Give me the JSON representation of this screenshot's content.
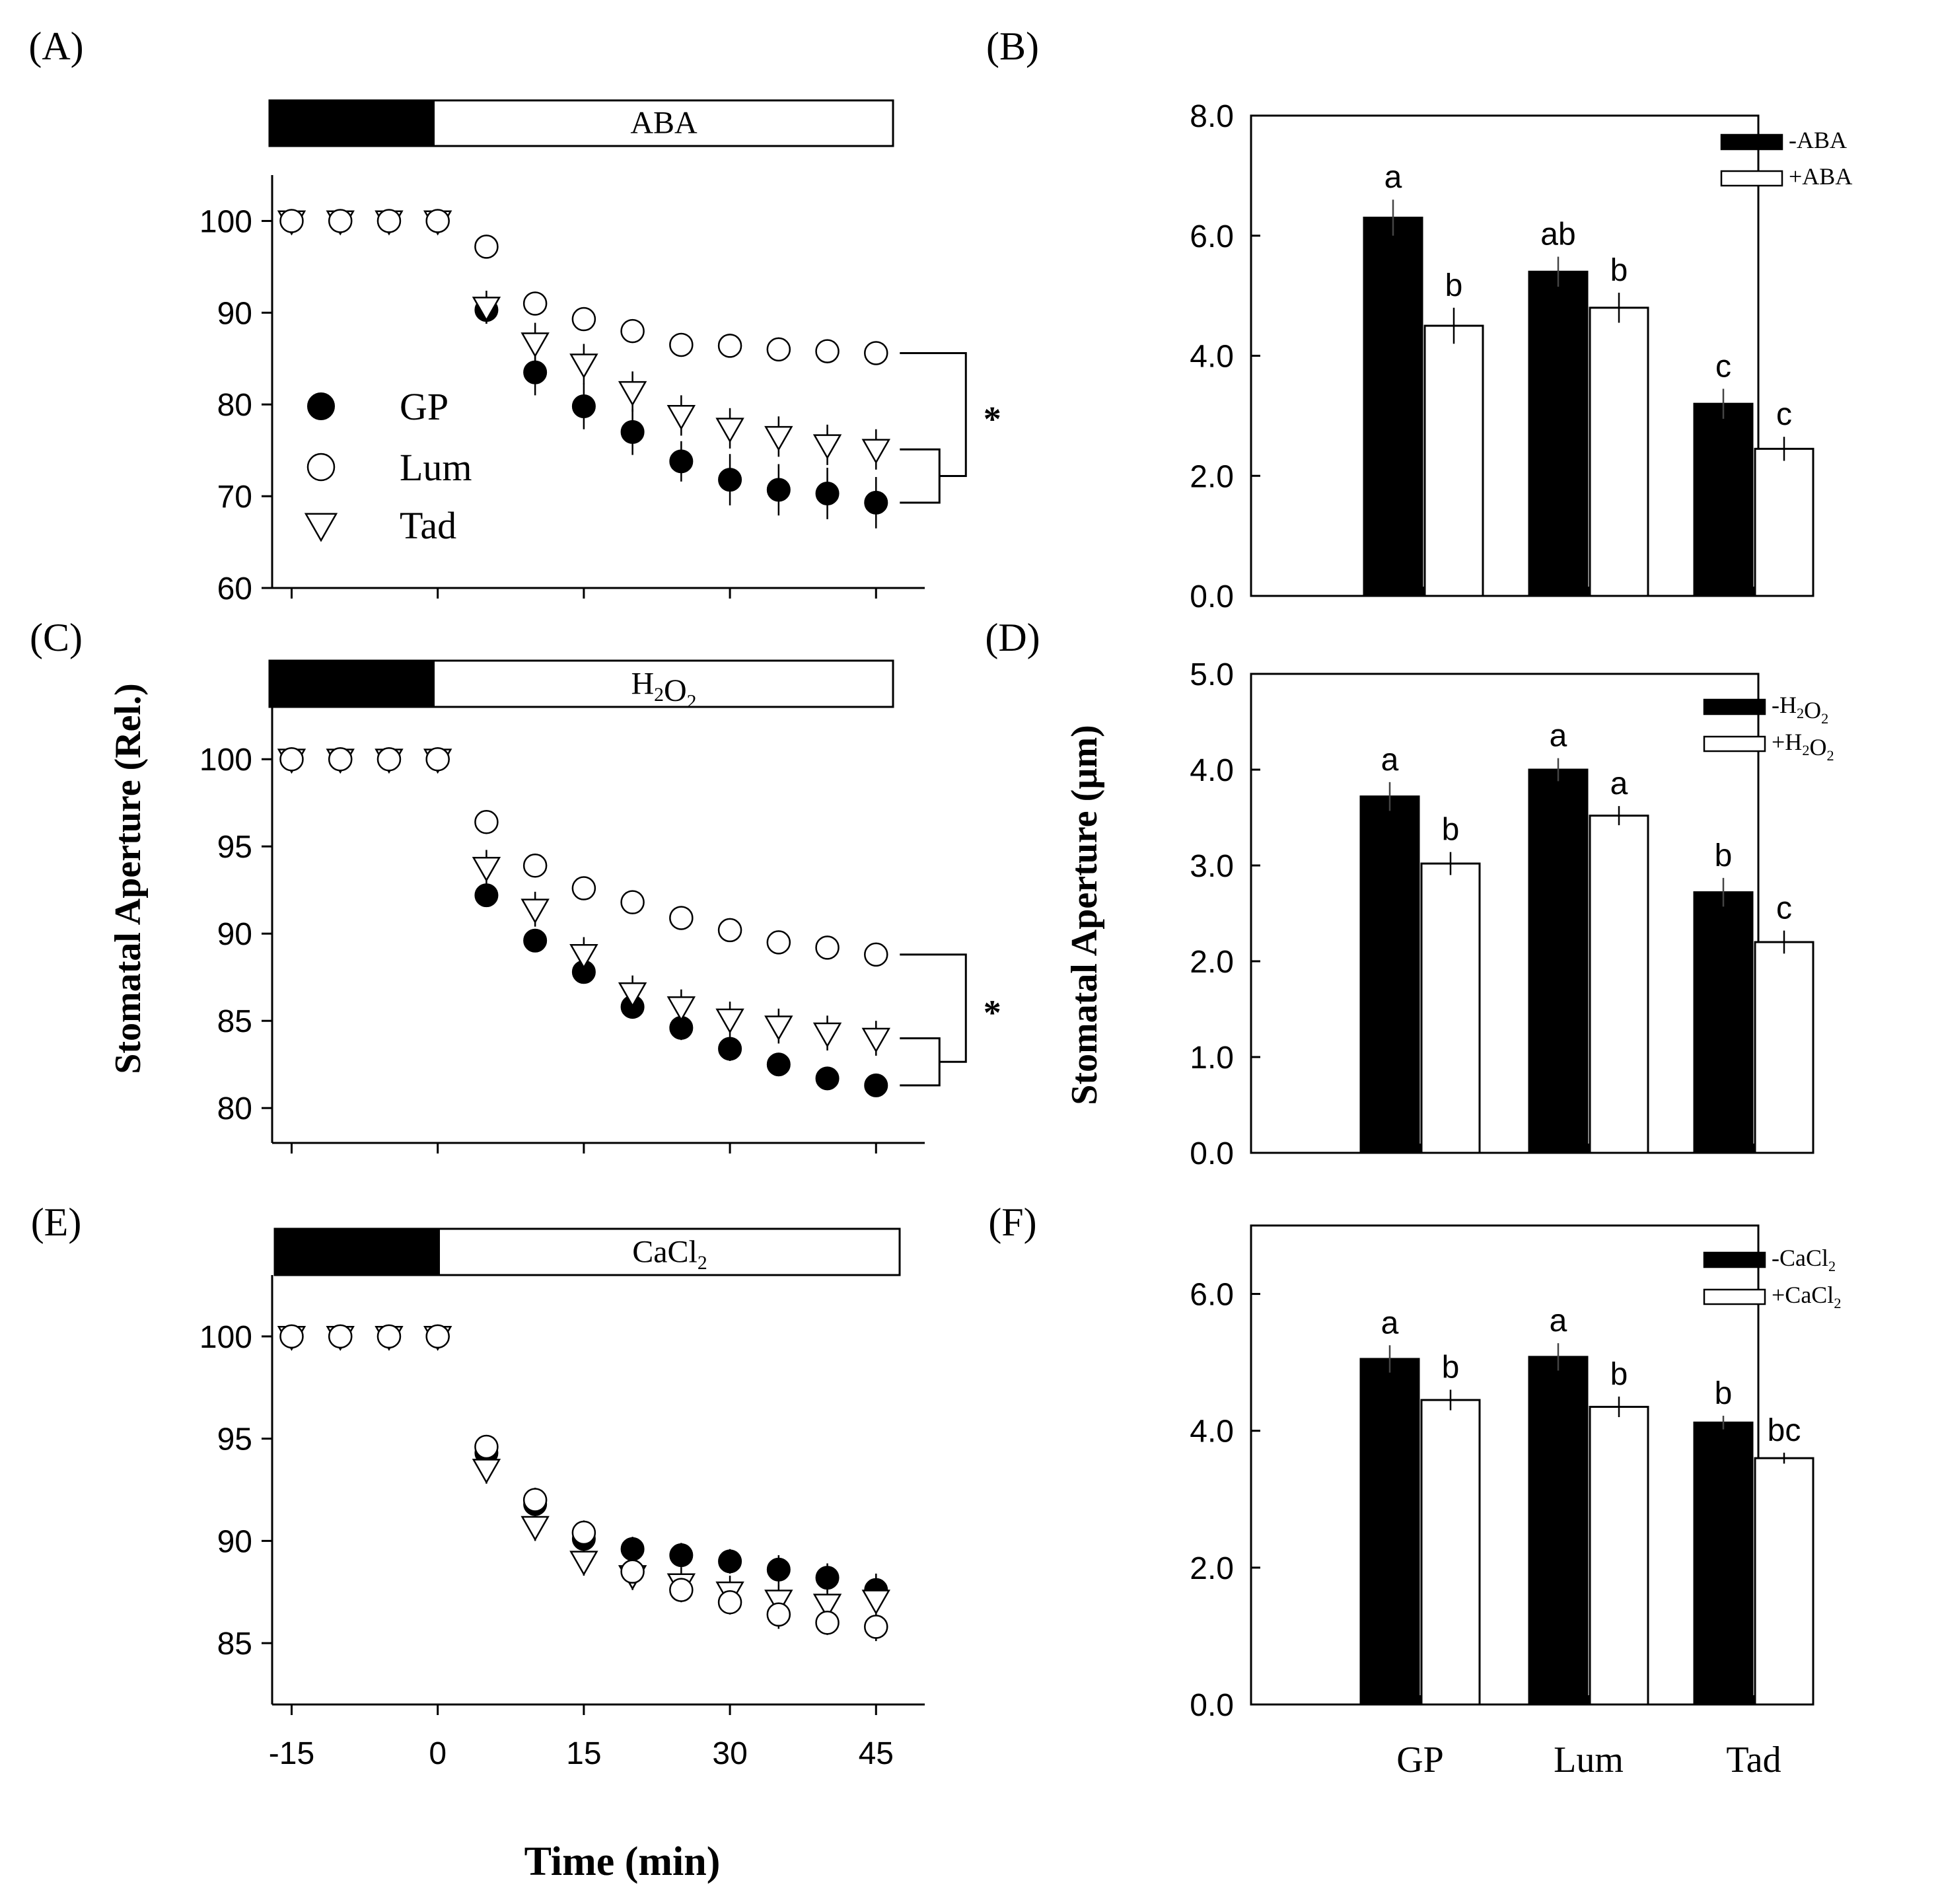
{
  "figure": {
    "x_axis_title": "Time (min)",
    "left_y_title": "Stomatal Aperture (Rel.)",
    "right_y_title": "Stomatal Aperture (µm)",
    "significance_mark": "*"
  },
  "chart_data": [
    {
      "panel": "(A)",
      "type": "scatter",
      "treatment_label": "ABA",
      "xlabel": "Time (min)",
      "ylabel": "Stomatal Aperture (Rel.)",
      "xlim": [
        -17,
        50
      ],
      "ylim": [
        60,
        105
      ],
      "x_ticks": [
        -15,
        0,
        15,
        30,
        45
      ],
      "y_ticks": [
        60,
        70,
        80,
        90,
        100
      ],
      "x": [
        -15,
        -10,
        -5,
        0,
        5,
        10,
        15,
        20,
        25,
        30,
        35,
        40,
        45
      ],
      "series": [
        {
          "name": "GP",
          "marker": "filled-circle",
          "values": [
            100,
            100,
            100,
            100,
            90.3,
            83.5,
            79.8,
            77.0,
            73.8,
            71.8,
            70.7,
            70.3,
            69.3
          ],
          "errors": [
            0,
            0,
            0,
            0,
            1.5,
            2.5,
            2.5,
            2.5,
            2.2,
            2.8,
            2.8,
            2.8,
            2.8
          ]
        },
        {
          "name": "Lum",
          "marker": "open-circle",
          "values": [
            100,
            100,
            100,
            100,
            97.2,
            91.0,
            89.3,
            88.0,
            86.5,
            86.4,
            86.0,
            85.8,
            85.6
          ],
          "errors": [
            0,
            0,
            0,
            0,
            0.8,
            1.2,
            1.2,
            1.2,
            1.2,
            1.3,
            1.3,
            1.3,
            1.2
          ]
        },
        {
          "name": "Tad",
          "marker": "open-triangle",
          "values": [
            100,
            100,
            100,
            100,
            90.6,
            86.7,
            84.4,
            81.4,
            78.8,
            77.4,
            76.5,
            75.6,
            75.1
          ],
          "errors": [
            0,
            0,
            0,
            0,
            1.8,
            2.2,
            2.2,
            2.2,
            2.2,
            2.2,
            2.2,
            2.2,
            2.2
          ]
        }
      ],
      "legend": [
        "GP",
        "Lum",
        "Tad"
      ]
    },
    {
      "panel": "(B)",
      "type": "bar",
      "categories": [
        "GP",
        "Lum",
        "Tad"
      ],
      "ylim": [
        0,
        8
      ],
      "y_ticks": [
        "0.0",
        "2.0",
        "4.0",
        "6.0",
        "8.0"
      ],
      "series": [
        {
          "name": "-ABA",
          "color": "#000000",
          "values": [
            6.3,
            5.4,
            3.2
          ],
          "errors": [
            0.3,
            0.25,
            0.25
          ],
          "letters": [
            "a",
            "ab",
            "c"
          ]
        },
        {
          "name": "+ABA",
          "color": "#ffffff",
          "values": [
            4.5,
            4.8,
            2.45
          ],
          "errors": [
            0.3,
            0.25,
            0.2
          ],
          "letters": [
            "b",
            "b",
            "c"
          ]
        }
      ]
    },
    {
      "panel": "(C)",
      "type": "scatter",
      "treatment_label": "H2O2",
      "xlim": [
        -17,
        50
      ],
      "ylim": [
        78,
        103
      ],
      "x_ticks": [
        -15,
        0,
        15,
        30,
        45
      ],
      "y_ticks": [
        80,
        85,
        90,
        95,
        100
      ],
      "x": [
        -15,
        -10,
        -5,
        0,
        5,
        10,
        15,
        20,
        25,
        30,
        35,
        40,
        45
      ],
      "series": [
        {
          "name": "GP",
          "marker": "filled-circle",
          "values": [
            100,
            100,
            100,
            100,
            92.2,
            89.6,
            87.8,
            85.8,
            84.6,
            83.4,
            82.5,
            81.7,
            81.3
          ],
          "errors": [
            0,
            0,
            0,
            0,
            0.6,
            0.6,
            0.6,
            0.6,
            0.7,
            0.7,
            0.6,
            0.5,
            0.5
          ]
        },
        {
          "name": "Lum",
          "marker": "open-circle",
          "values": [
            100,
            100,
            100,
            100,
            96.4,
            93.9,
            92.6,
            91.8,
            90.9,
            90.2,
            89.5,
            89.2,
            88.8
          ],
          "errors": [
            0,
            0,
            0,
            0,
            0.5,
            0.5,
            0.5,
            0.5,
            0.5,
            0.5,
            0.5,
            0.5,
            0.5
          ]
        },
        {
          "name": "Tad",
          "marker": "open-triangle",
          "values": [
            100,
            100,
            100,
            100,
            93.8,
            91.4,
            88.8,
            86.6,
            85.8,
            85.1,
            84.7,
            84.3,
            84.0
          ],
          "errors": [
            0,
            0,
            0,
            0,
            1.0,
            1.0,
            1.0,
            1.0,
            1.0,
            1.0,
            1.0,
            1.0,
            1.0
          ]
        }
      ]
    },
    {
      "panel": "(D)",
      "type": "bar",
      "categories": [
        "GP",
        "Lum",
        "Tad"
      ],
      "ylim": [
        0,
        5
      ],
      "y_ticks": [
        "0.0",
        "1.0",
        "2.0",
        "3.0",
        "4.0",
        "5.0"
      ],
      "series": [
        {
          "name": "-H2O2",
          "color": "#000000",
          "values": [
            3.72,
            4.0,
            2.72
          ],
          "errors": [
            0.15,
            0.12,
            0.15
          ],
          "letters": [
            "a",
            "a",
            "b"
          ]
        },
        {
          "name": "+H2O2",
          "color": "#ffffff",
          "values": [
            3.02,
            3.52,
            2.2
          ],
          "errors": [
            0.12,
            0.1,
            0.12
          ],
          "letters": [
            "b",
            "a",
            "c"
          ]
        }
      ]
    },
    {
      "panel": "(E)",
      "type": "scatter",
      "treatment_label": "CaCl2",
      "xlabel": "Time (min)",
      "xlim": [
        -17,
        50
      ],
      "ylim": [
        82,
        103
      ],
      "x_ticks": [
        -15,
        0,
        15,
        30,
        45
      ],
      "x_tick_labels": [
        "-15",
        "0",
        "15",
        "30",
        "45"
      ],
      "y_ticks": [
        85,
        90,
        95,
        100
      ],
      "x": [
        -15,
        -10,
        -5,
        0,
        5,
        10,
        15,
        20,
        25,
        30,
        35,
        40,
        45
      ],
      "series": [
        {
          "name": "GP",
          "marker": "filled-circle",
          "values": [
            100,
            100,
            100,
            100,
            94.3,
            91.8,
            90.1,
            89.6,
            89.3,
            89.0,
            88.6,
            88.2,
            87.6
          ],
          "errors": [
            0,
            0,
            0,
            0,
            0.5,
            0.6,
            0.6,
            0.6,
            0.6,
            0.6,
            0.7,
            0.7,
            0.8
          ]
        },
        {
          "name": "Lum",
          "marker": "open-circle",
          "values": [
            100,
            100,
            100,
            100,
            94.6,
            92.0,
            90.4,
            88.5,
            87.6,
            87.0,
            86.4,
            86.0,
            85.8
          ],
          "errors": [
            0,
            0,
            0,
            0,
            0.5,
            0.6,
            0.6,
            0.6,
            0.6,
            0.6,
            0.7,
            0.6,
            0.7
          ]
        },
        {
          "name": "Tad",
          "marker": "open-triangle",
          "values": [
            100,
            100,
            100,
            100,
            93.5,
            90.7,
            89.0,
            88.3,
            87.9,
            87.5,
            87.1,
            86.9,
            87.1
          ],
          "errors": [
            0,
            0,
            0,
            0,
            0.7,
            0.7,
            0.7,
            0.7,
            0.8,
            0.8,
            0.8,
            0.8,
            0.8
          ]
        }
      ]
    },
    {
      "panel": "(F)",
      "type": "bar",
      "categories": [
        "GP",
        "Lum",
        "Tad"
      ],
      "ylim": [
        0,
        7
      ],
      "y_ticks": [
        "0.0",
        "2.0",
        "4.0",
        "6.0"
      ],
      "series": [
        {
          "name": "-CaCl2",
          "color": "#000000",
          "values": [
            5.05,
            5.08,
            4.12
          ],
          "errors": [
            0.2,
            0.2,
            0.1
          ],
          "letters": [
            "a",
            "a",
            "b"
          ]
        },
        {
          "name": "+CaCl2",
          "color": "#ffffff",
          "values": [
            4.45,
            4.35,
            3.6
          ],
          "errors": [
            0.15,
            0.15,
            0.08
          ],
          "letters": [
            "b",
            "b",
            "bc"
          ]
        }
      ]
    }
  ]
}
